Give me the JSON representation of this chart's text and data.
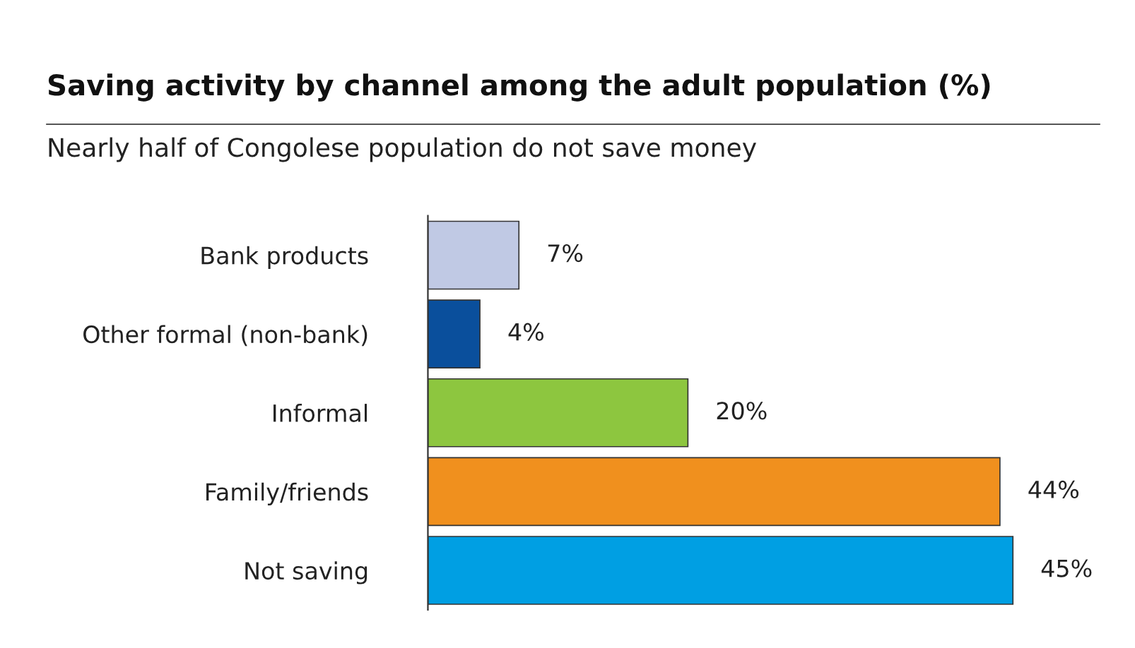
{
  "chart_data": {
    "type": "bar",
    "orientation": "horizontal",
    "title": "Saving activity by channel among the adult population (%)",
    "subtitle": "Nearly half of Congolese population do not save money",
    "categories": [
      "Bank products",
      "Other formal (non-bank)",
      "Informal",
      "Family/friends",
      "Not saving"
    ],
    "values": [
      7,
      4,
      20,
      44,
      45
    ],
    "colors": [
      "#c0c9e4",
      "#0a4f9c",
      "#8dc63f",
      "#f0901e",
      "#009fe3"
    ],
    "value_labels": [
      "7%",
      "4%",
      "20%",
      "44%",
      "45%"
    ],
    "grid": false,
    "legend": false
  }
}
